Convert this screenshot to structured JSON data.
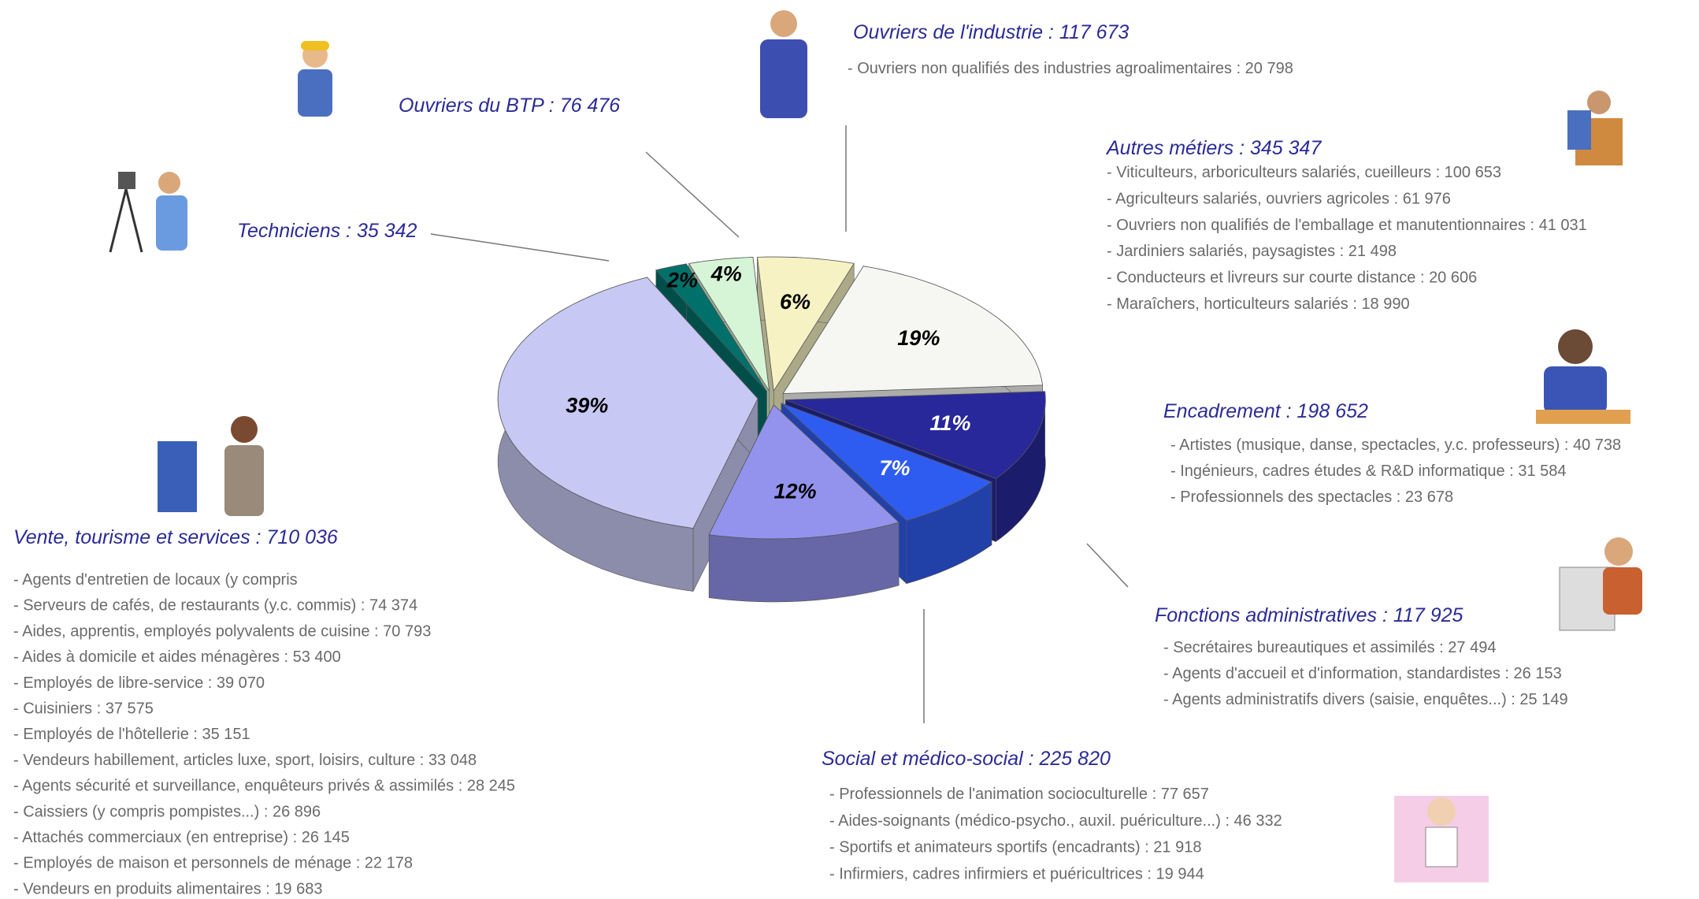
{
  "chart_data": {
    "type": "pie",
    "categories": [
      "Vente, tourisme et services : 710 036",
      "Techniciens : 35 342",
      "Ouvriers du BTP : 76 476",
      "Ouvriers de l'industrie : 117 673",
      "Autres métiers : 345 347",
      "Encadrement : 198 652",
      "Fonctions administratives : 117 925",
      "Social et médico-social : 225 820"
    ],
    "values": [
      39,
      2,
      4,
      6,
      19,
      11,
      7,
      12
    ],
    "value_labels": [
      "39%",
      "2%",
      "4%",
      "6%",
      "19%",
      "11%",
      "7%",
      "12%"
    ],
    "colors": [
      "#c8c8f4",
      "#00706a",
      "#d6f4d6",
      "#f6f2c4",
      "#f6f6f3",
      "#28289a",
      "#2f5cf0",
      "#9393ee"
    ],
    "details": [
      [
        "- Agents d'entretien de locaux (y compris",
        "- Serveurs de cafés, de restaurants (y.c. commis) : 74 374",
        "- Aides, apprentis, employés polyvalents de cuisine : 70 793",
        "- Aides à domicile et aides ménagères : 53 400",
        "- Employés de libre-service : 39 070",
        "- Cuisiniers : 37 575",
        "- Employés de l'hôtellerie : 35 151",
        "- Vendeurs habillement, articles luxe, sport, loisirs, culture : 33 048",
        "- Agents sécurité et surveillance, enquêteurs privés & assimilés : 28 245",
        "- Caissiers (y compris pompistes...) : 26 896",
        "- Attachés commerciaux (en entreprise) : 26 145",
        "- Employés de maison et personnels de ménage : 22 178",
        "- Vendeurs en produits alimentaires : 19 683"
      ],
      [],
      [],
      [
        "- Ouvriers non qualifiés des industries agroalimentaires : 20 798"
      ],
      [
        "- Viticulteurs, arboriculteurs salariés, cueilleurs : 100 653",
        "- Agriculteurs salariés, ouvriers agricoles : 61 976",
        "- Ouvriers non qualifiés de l'emballage et manutentionnaires : 41 031",
        "- Jardiniers salariés, paysagistes : 21 498",
        "- Conducteurs et livreurs sur courte distance : 20 606",
        "- Maraîchers, horticulteurs salariés : 18 990"
      ],
      [
        "- Artistes (musique, danse, spectacles, y.c. professeurs) : 40 738",
        "- Ingénieurs, cadres études & R&D informatique : 31 584",
        "- Professionnels des spectacles : 23 678"
      ],
      [
        "- Secrétaires bureautiques et assimilés : 27 494",
        "- Agents d'accueil et d'information, standardistes : 26 153",
        "- Agents administratifs divers (saisie, enquêtes...) : 25 149"
      ],
      [
        "- Professionnels de l'animation socioculturelle : 77 657",
        "- Aides-soignants (médico-psycho., auxil. puériculture...) : 46 332",
        "- Sportifs et animateurs sportifs (encadrants) : 21 918",
        "- Infirmiers, cadres infirmiers et puéricultrices : 19 944"
      ]
    ]
  }
}
